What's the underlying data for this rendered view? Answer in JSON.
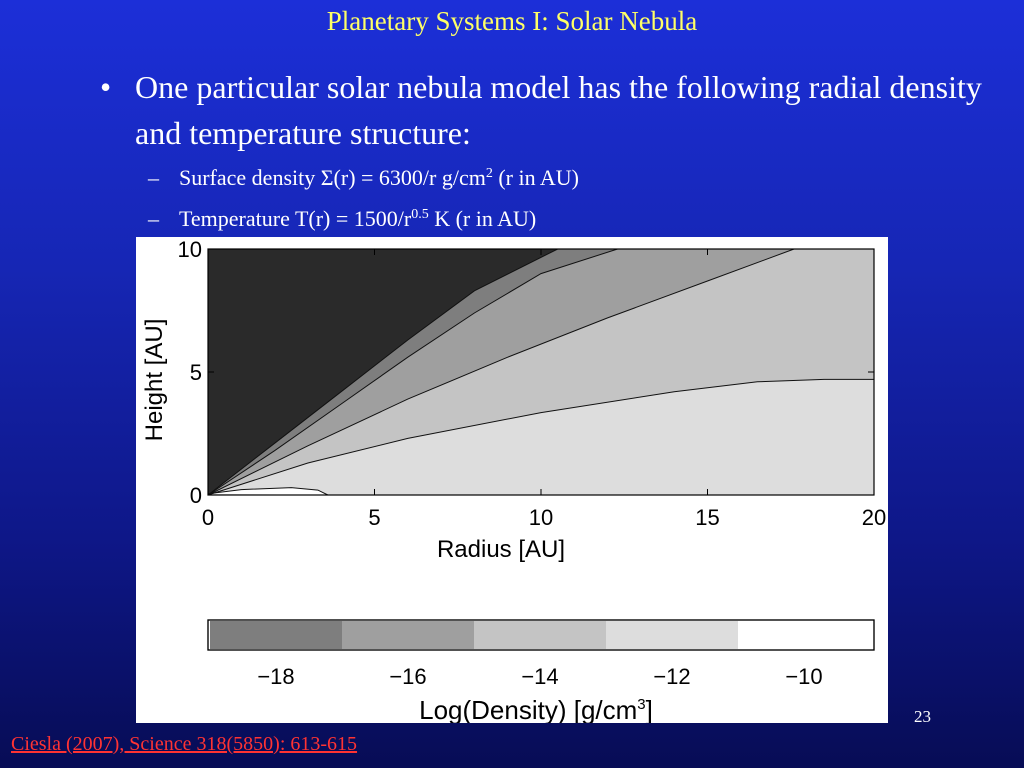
{
  "slide": {
    "title": "Planetary Systems I: Solar Nebula",
    "bullet_mark": "•",
    "bullet": "One particular solar nebula model has the following radial density and temperature structure:",
    "sub_bullets": [
      {
        "dash": "–",
        "prefix": "Surface density Σ(r) = 6300/r g/cm",
        "sup": "2",
        "suffix": " (r in AU)"
      },
      {
        "dash": "–",
        "prefix": "Temperature T(r) = 1500/r",
        "sup": "0.5",
        "suffix": " K (r in AU)"
      }
    ],
    "page_number": "23",
    "citation": "Ciesla (2007), Science 318(5850): 613-615"
  },
  "chart_data": {
    "type": "contour",
    "xlabel": "Radius [AU]",
    "ylabel": "Height [AU]",
    "xlim": [
      0,
      20
    ],
    "ylim": [
      0,
      10
    ],
    "x_ticks": [
      "0",
      "5",
      "10",
      "15",
      "20"
    ],
    "y_ticks": [
      "0",
      "5",
      "10"
    ],
    "levels": [
      {
        "name": "−10",
        "color": "#ffffff"
      },
      {
        "name": "−12",
        "color": "#dddddd"
      },
      {
        "name": "−14",
        "color": "#c4c4c4"
      },
      {
        "name": "−16",
        "color": "#9f9f9f"
      },
      {
        "name": "−18",
        "color": "#7e7e7e"
      },
      {
        "name": "below −18",
        "color": "#2a2a2a"
      }
    ],
    "colorbar": {
      "title_prefix": "Log(Density) [g/cm",
      "title_sup": "3",
      "title_suffix": "]",
      "tick_labels": [
        "−18",
        "−16",
        "−14",
        "−12",
        "−10"
      ]
    },
    "contour_lines": [
      {
        "level": "−10",
        "points": [
          [
            0,
            0.05
          ],
          [
            1,
            0.22
          ],
          [
            2.5,
            0.3
          ],
          [
            3.3,
            0.2
          ],
          [
            3.6,
            0.0
          ]
        ]
      },
      {
        "level": "−12",
        "points": [
          [
            0,
            0
          ],
          [
            3,
            1.3
          ],
          [
            6,
            2.3
          ],
          [
            10,
            3.35
          ],
          [
            14,
            4.2
          ],
          [
            16.5,
            4.6
          ],
          [
            18.5,
            4.7
          ],
          [
            20,
            4.7
          ]
        ]
      },
      {
        "level": "−14",
        "points": [
          [
            0,
            0
          ],
          [
            3,
            2.0
          ],
          [
            6,
            3.9
          ],
          [
            9,
            5.6
          ],
          [
            12,
            7.2
          ],
          [
            15,
            8.7
          ],
          [
            17.6,
            10
          ]
        ]
      },
      {
        "level": "−16",
        "points": [
          [
            0,
            0
          ],
          [
            2,
            1.8
          ],
          [
            4,
            3.7
          ],
          [
            6,
            5.6
          ],
          [
            8,
            7.4
          ],
          [
            10,
            9.0
          ],
          [
            12.3,
            10
          ]
        ]
      },
      {
        "level": "−18",
        "points": [
          [
            0,
            0
          ],
          [
            2,
            2.1
          ],
          [
            4,
            4.2
          ],
          [
            6,
            6.3
          ],
          [
            8,
            8.3
          ],
          [
            10.5,
            10
          ]
        ]
      }
    ]
  }
}
